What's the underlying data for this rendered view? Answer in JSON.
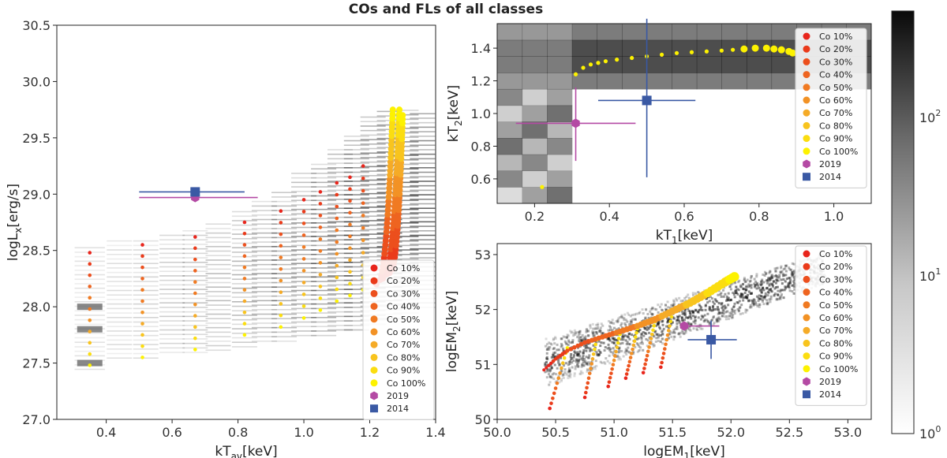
{
  "figure": {
    "title": "COs and FLs of all classes"
  },
  "legend_labels": [
    "Co 10%",
    "Co 20%",
    "Co 30%",
    "Co 40%",
    "Co 50%",
    "Co 60%",
    "Co 70%",
    "Co 80%",
    "Co 90%",
    "Co 100%",
    "2019",
    "2014"
  ],
  "colors": {
    "co": [
      "#e8251c",
      "#ea3a1a",
      "#ec4f1d",
      "#ee6420",
      "#f07a22",
      "#f29225",
      "#f5ab27",
      "#f8c41e",
      "#fbdd10",
      "#fdf200"
    ],
    "marker_2019": "#b44aa4",
    "marker_2014": "#3a59a4",
    "hist_dark": "#111111"
  },
  "chart_data": [
    {
      "id": "left",
      "type": "scatter",
      "title": "",
      "xlabel": "kT",
      "xlabel_sub": "av",
      "xlabel_unit": "[keV]",
      "ylabel": "logL",
      "ylabel_sub": "x",
      "ylabel_unit": "[erg/s]",
      "xlim": [
        0.25,
        1.4
      ],
      "ylim": [
        27.0,
        30.5
      ],
      "xticks": [
        0.4,
        0.6,
        0.8,
        1.0,
        1.2,
        1.4
      ],
      "xtick_labels": [
        "0.4",
        "0.6",
        "0.8",
        "1.0",
        "1.2",
        "1.4"
      ],
      "yticks": [
        27.0,
        27.5,
        28.0,
        28.5,
        29.0,
        29.5,
        30.0,
        30.5
      ],
      "ytick_labels": [
        "27.0",
        "27.5",
        "28.0",
        "28.5",
        "29.0",
        "29.5",
        "30.0",
        "30.5"
      ],
      "legend_position": "bottom-right",
      "columns": [
        {
          "x": 0.35,
          "y0": 27.45,
          "y1": 28.55,
          "w": 12
        },
        {
          "x": 0.44,
          "y0": 27.55,
          "y1": 28.6,
          "w": 10
        },
        {
          "x": 0.52,
          "y0": 27.55,
          "y1": 28.62,
          "w": 10
        },
        {
          "x": 0.6,
          "y0": 27.6,
          "y1": 28.65,
          "w": 10
        },
        {
          "x": 0.67,
          "y0": 27.6,
          "y1": 28.7,
          "w": 10
        },
        {
          "x": 0.74,
          "y0": 27.62,
          "y1": 28.75,
          "w": 10
        },
        {
          "x": 0.82,
          "y0": 27.65,
          "y1": 28.85,
          "w": 10
        },
        {
          "x": 0.88,
          "y0": 27.7,
          "y1": 28.95,
          "w": 10
        },
        {
          "x": 0.94,
          "y0": 27.7,
          "y1": 29.05,
          "w": 10
        },
        {
          "x": 1.0,
          "y0": 27.75,
          "y1": 29.2,
          "w": 10
        },
        {
          "x": 1.06,
          "y0": 27.75,
          "y1": 29.3,
          "w": 10
        },
        {
          "x": 1.11,
          "y0": 27.8,
          "y1": 29.4,
          "w": 10
        },
        {
          "x": 1.16,
          "y0": 27.8,
          "y1": 29.55,
          "w": 10
        },
        {
          "x": 1.21,
          "y0": 27.85,
          "y1": 29.72,
          "w": 10
        },
        {
          "x": 1.26,
          "y0": 27.9,
          "y1": 29.75,
          "w": 10
        },
        {
          "x": 1.31,
          "y0": 27.95,
          "y1": 29.75,
          "w": 10
        },
        {
          "x": 1.36,
          "y0": 28.0,
          "y1": 29.75,
          "w": 10
        }
      ],
      "dot_columns": [
        {
          "x": 0.35,
          "y0": 27.48,
          "y1": 28.48,
          "n": 11
        },
        {
          "x": 0.51,
          "y0": 27.55,
          "y1": 28.55,
          "n": 11
        },
        {
          "x": 0.67,
          "y0": 27.62,
          "y1": 28.62,
          "n": 11
        },
        {
          "x": 0.82,
          "y0": 27.75,
          "y1": 28.75,
          "n": 11
        },
        {
          "x": 0.93,
          "y0": 27.82,
          "y1": 28.85,
          "n": 11
        },
        {
          "x": 1.0,
          "y0": 27.9,
          "y1": 28.95,
          "n": 11
        },
        {
          "x": 1.05,
          "y0": 27.97,
          "y1": 29.02,
          "n": 11
        },
        {
          "x": 1.1,
          "y0": 28.05,
          "y1": 29.1,
          "n": 11
        },
        {
          "x": 1.14,
          "y0": 28.1,
          "y1": 29.15,
          "n": 11
        },
        {
          "x": 1.18,
          "y0": 28.15,
          "y1": 29.25,
          "n": 11
        }
      ],
      "curves": [
        {
          "x0": 1.22,
          "y0": 28.2,
          "x1": 1.27,
          "y1": 29.75
        },
        {
          "x0": 1.24,
          "y0": 28.25,
          "x1": 1.29,
          "y1": 29.75
        },
        {
          "x0": 1.26,
          "y0": 28.3,
          "x1": 1.3,
          "y1": 29.7
        }
      ],
      "points": [
        {
          "label": "2019",
          "x": 0.67,
          "y": 28.97,
          "xerr_lo": 0.17,
          "xerr_hi": 0.19,
          "yerr": 0.0,
          "marker": "hexagon"
        },
        {
          "label": "2014",
          "x": 0.67,
          "y": 29.02,
          "xerr_lo": 0.17,
          "xerr_hi": 0.15,
          "yerr": 0.0,
          "marker": "square"
        }
      ]
    },
    {
      "id": "top_right",
      "type": "scatter",
      "xlabel": "kT",
      "xlabel_sub": "1",
      "xlabel_unit": "[keV]",
      "ylabel": "kT",
      "ylabel_sub": "2",
      "ylabel_unit": "[keV]",
      "xlim": [
        0.1,
        1.1
      ],
      "ylim": [
        0.45,
        1.55
      ],
      "xticks": [
        0.2,
        0.4,
        0.6,
        0.8,
        1.0
      ],
      "xtick_labels": [
        "0.2",
        "0.4",
        "0.6",
        "0.8",
        "1.0"
      ],
      "yticks": [
        0.6,
        0.8,
        1.0,
        1.2,
        1.4
      ],
      "ytick_labels": [
        "0.6",
        "0.8",
        "1.0",
        "1.2",
        "1.4"
      ],
      "legend_position": "top-right",
      "curve": [
        [
          0.22,
          0.55
        ],
        [
          0.31,
          1.24
        ],
        [
          0.33,
          1.28
        ],
        [
          0.35,
          1.3
        ],
        [
          0.37,
          1.31
        ],
        [
          0.39,
          1.32
        ],
        [
          0.42,
          1.33
        ],
        [
          0.46,
          1.34
        ],
        [
          0.5,
          1.35
        ],
        [
          0.54,
          1.36
        ],
        [
          0.58,
          1.37
        ],
        [
          0.62,
          1.375
        ],
        [
          0.66,
          1.38
        ],
        [
          0.7,
          1.385
        ],
        [
          0.73,
          1.39
        ],
        [
          0.76,
          1.395
        ],
        [
          0.79,
          1.4
        ],
        [
          0.82,
          1.4
        ],
        [
          0.84,
          1.395
        ],
        [
          0.86,
          1.39
        ],
        [
          0.88,
          1.38
        ],
        [
          0.89,
          1.37
        ]
      ],
      "points": [
        {
          "label": "2019",
          "x": 0.31,
          "y": 0.94,
          "xerr_lo": 0.16,
          "xerr_hi": 0.16,
          "yerr_lo": 0.23,
          "yerr_hi": 0.22,
          "marker": "hexagon"
        },
        {
          "label": "2014",
          "x": 0.5,
          "y": 1.08,
          "xerr_lo": 0.13,
          "xerr_hi": 0.13,
          "yerr_lo": 0.47,
          "yerr_hi": 0.5,
          "marker": "square"
        }
      ]
    },
    {
      "id": "bottom_right",
      "type": "scatter",
      "xlabel": "logEM",
      "xlabel_sub": "1",
      "xlabel_unit": "[keV]",
      "ylabel": "logEM",
      "ylabel_sub": "2",
      "ylabel_unit": "[keV]",
      "xlim": [
        50.0,
        53.2
      ],
      "ylim": [
        50.0,
        53.2
      ],
      "xticks": [
        50.0,
        50.5,
        51.0,
        51.5,
        52.0,
        52.5,
        53.0
      ],
      "xtick_labels": [
        "50.0",
        "50.5",
        "51.0",
        "51.5",
        "52.0",
        "52.5",
        "53.0"
      ],
      "yticks": [
        50,
        51,
        52,
        53
      ],
      "ytick_labels": [
        "50",
        "51",
        "52",
        "53"
      ],
      "legend_position": "top-right",
      "main_curve": [
        [
          50.4,
          50.9
        ],
        [
          50.5,
          51.1
        ],
        [
          50.6,
          51.25
        ],
        [
          50.75,
          51.4
        ],
        [
          50.9,
          51.5
        ],
        [
          51.05,
          51.6
        ],
        [
          51.2,
          51.7
        ],
        [
          51.35,
          51.82
        ],
        [
          51.5,
          51.97
        ],
        [
          51.65,
          52.12
        ],
        [
          51.8,
          52.3
        ],
        [
          51.95,
          52.5
        ],
        [
          52.05,
          52.62
        ]
      ],
      "sub_fans": [
        {
          "x0": 50.45,
          "y0": 50.2,
          "x1": 50.6,
          "y1": 51.3
        },
        {
          "x0": 50.75,
          "y0": 50.4,
          "x1": 50.85,
          "y1": 51.45
        },
        {
          "x0": 50.95,
          "y0": 50.6,
          "x1": 51.05,
          "y1": 51.55
        },
        {
          "x0": 51.1,
          "y0": 50.75,
          "x1": 51.2,
          "y1": 51.65
        },
        {
          "x0": 51.25,
          "y0": 50.85,
          "x1": 51.35,
          "y1": 51.78
        },
        {
          "x0": 51.4,
          "y0": 50.95,
          "x1": 51.5,
          "y1": 51.95
        }
      ],
      "points": [
        {
          "label": "2019",
          "x": 51.6,
          "y": 51.7,
          "xerr_lo": 0.0,
          "xerr_hi": 0.3,
          "yerr_lo": 0.0,
          "yerr_hi": 0.0,
          "marker": "hexagon"
        },
        {
          "label": "2014",
          "x": 51.83,
          "y": 51.45,
          "xerr_lo": 0.2,
          "xerr_hi": 0.22,
          "yerr_lo": 0.35,
          "yerr_hi": 0.35,
          "marker": "square"
        }
      ]
    }
  ],
  "colorbar": {
    "scale": "log",
    "range": [
      1,
      500
    ],
    "tick_labels": [
      {
        "base": "10",
        "exp": "0",
        "value": 1
      },
      {
        "base": "10",
        "exp": "1",
        "value": 10
      },
      {
        "base": "10",
        "exp": "2",
        "value": 100
      }
    ]
  }
}
